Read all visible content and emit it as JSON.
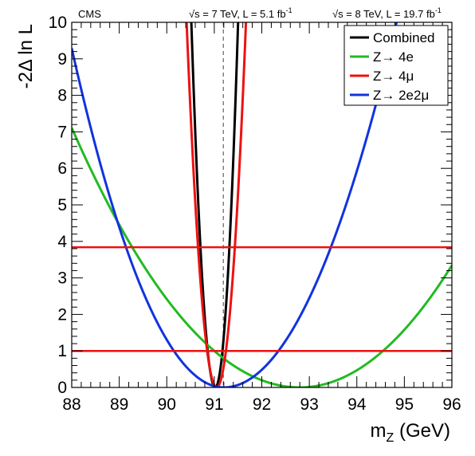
{
  "chart_data": {
    "type": "line",
    "experiment_label": "CMS",
    "energy_label_7": "√s = 7 TeV, L = 5.1 fb",
    "energy_sup_7": "-1",
    "energy_label_8": "√s = 8 TeV, L = 19.7 fb",
    "energy_sup_8": "-1",
    "xlabel_main": "m",
    "xlabel_sub": "Z",
    "xlabel_unit": " (GeV)",
    "ylabel": "-2Δ ln L",
    "xlim": [
      88,
      96
    ],
    "ylim": [
      0,
      10
    ],
    "x_ticks": [
      "88",
      "89",
      "90",
      "91",
      "92",
      "93",
      "94",
      "95",
      "96"
    ],
    "y_ticks": [
      "0",
      "1",
      "2",
      "3",
      "4",
      "5",
      "6",
      "7",
      "8",
      "9",
      "10"
    ],
    "reference_mass": 91.19,
    "horizontal_lines": [
      1.0,
      3.84
    ],
    "legend_position": "top-right",
    "grid": false,
    "series": [
      {
        "name": "Combined",
        "color": "#000000",
        "min_x": 91.02,
        "sigma_left": 0.159,
        "sigma_right": 0.152
      },
      {
        "name": "Z→ 4e",
        "color": "#22bb22",
        "min_x": 92.8,
        "sigma_left": 1.8,
        "sigma_right": 1.75
      },
      {
        "name": "Z→ 4μ",
        "color": "#ee1111",
        "min_x": 91.05,
        "sigma_left": 0.2,
        "sigma_right": 0.195
      },
      {
        "name": "Z→ 2e2μ",
        "color": "#1133dd",
        "min_x": 91.2,
        "sigma_left": 1.05,
        "sigma_right": 1.15
      }
    ]
  }
}
